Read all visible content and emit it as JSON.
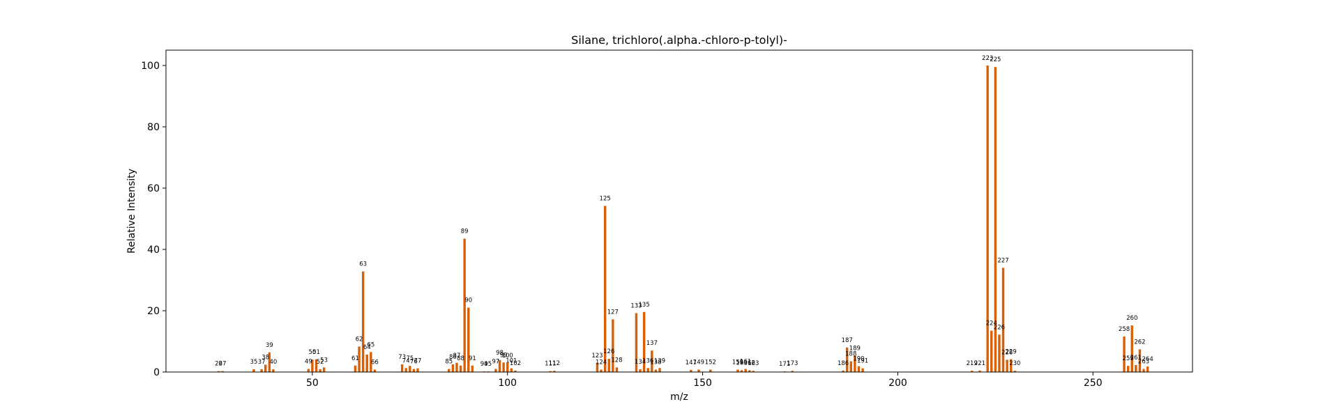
{
  "chart_data": {
    "type": "bar",
    "title": "Silane, trichloro(.alpha.-chloro-p-tolyl)-",
    "xlabel": "m/z",
    "ylabel": "Relative Intensity",
    "xlim": [
      12.5,
      275.5
    ],
    "ylim": [
      0,
      105
    ],
    "xticks": [
      50,
      100,
      150,
      200,
      250
    ],
    "yticks": [
      0,
      20,
      40,
      60,
      80,
      100
    ],
    "grid": false,
    "bar_color": "#d95f02",
    "peaks": [
      {
        "mz": 26,
        "intensity": 0.3
      },
      {
        "mz": 27,
        "intensity": 0.3
      },
      {
        "mz": 35,
        "intensity": 0.9
      },
      {
        "mz": 37,
        "intensity": 0.9
      },
      {
        "mz": 38,
        "intensity": 2.4
      },
      {
        "mz": 39,
        "intensity": 6.4
      },
      {
        "mz": 40,
        "intensity": 0.9
      },
      {
        "mz": 49,
        "intensity": 1.0
      },
      {
        "mz": 50,
        "intensity": 4.1
      },
      {
        "mz": 51,
        "intensity": 4.1
      },
      {
        "mz": 52,
        "intensity": 0.9
      },
      {
        "mz": 53,
        "intensity": 1.5
      },
      {
        "mz": 61,
        "intensity": 2.1
      },
      {
        "mz": 62,
        "intensity": 8.3
      },
      {
        "mz": 63,
        "intensity": 32.8
      },
      {
        "mz": 64,
        "intensity": 5.7
      },
      {
        "mz": 65,
        "intensity": 6.5
      },
      {
        "mz": 66,
        "intensity": 0.8
      },
      {
        "mz": 73,
        "intensity": 2.5
      },
      {
        "mz": 74,
        "intensity": 1.3
      },
      {
        "mz": 75,
        "intensity": 2.0
      },
      {
        "mz": 76,
        "intensity": 1.0
      },
      {
        "mz": 77,
        "intensity": 1.2
      },
      {
        "mz": 85,
        "intensity": 1.0
      },
      {
        "mz": 86,
        "intensity": 2.5
      },
      {
        "mz": 87,
        "intensity": 3.0
      },
      {
        "mz": 88,
        "intensity": 2.1
      },
      {
        "mz": 89,
        "intensity": 43.5
      },
      {
        "mz": 90,
        "intensity": 21.0
      },
      {
        "mz": 91,
        "intensity": 2.1
      },
      {
        "mz": 94,
        "intensity": 0.2
      },
      {
        "mz": 95,
        "intensity": 0.2
      },
      {
        "mz": 97,
        "intensity": 1.0
      },
      {
        "mz": 98,
        "intensity": 3.9
      },
      {
        "mz": 99,
        "intensity": 3.1
      },
      {
        "mz": 100,
        "intensity": 3.0
      },
      {
        "mz": 101,
        "intensity": 1.2
      },
      {
        "mz": 102,
        "intensity": 0.5
      },
      {
        "mz": 111,
        "intensity": 0.3
      },
      {
        "mz": 112,
        "intensity": 0.4
      },
      {
        "mz": 123,
        "intensity": 3.0
      },
      {
        "mz": 124,
        "intensity": 0.8
      },
      {
        "mz": 125,
        "intensity": 54.2
      },
      {
        "mz": 126,
        "intensity": 4.3
      },
      {
        "mz": 127,
        "intensity": 17.2
      },
      {
        "mz": 128,
        "intensity": 1.5
      },
      {
        "mz": 133,
        "intensity": 19.2
      },
      {
        "mz": 134,
        "intensity": 0.9
      },
      {
        "mz": 135,
        "intensity": 19.6
      },
      {
        "mz": 136,
        "intensity": 1.3
      },
      {
        "mz": 137,
        "intensity": 7.0
      },
      {
        "mz": 138,
        "intensity": 0.8
      },
      {
        "mz": 139,
        "intensity": 1.3
      },
      {
        "mz": 147,
        "intensity": 0.7
      },
      {
        "mz": 149,
        "intensity": 0.8
      },
      {
        "mz": 152,
        "intensity": 0.8
      },
      {
        "mz": 159,
        "intensity": 0.8
      },
      {
        "mz": 160,
        "intensity": 0.6
      },
      {
        "mz": 161,
        "intensity": 1.0
      },
      {
        "mz": 162,
        "intensity": 0.6
      },
      {
        "mz": 163,
        "intensity": 0.4
      },
      {
        "mz": 171,
        "intensity": 0.2
      },
      {
        "mz": 173,
        "intensity": 0.4
      },
      {
        "mz": 186,
        "intensity": 0.5
      },
      {
        "mz": 187,
        "intensity": 8.0
      },
      {
        "mz": 188,
        "intensity": 3.5
      },
      {
        "mz": 189,
        "intensity": 5.3
      },
      {
        "mz": 190,
        "intensity": 1.9
      },
      {
        "mz": 191,
        "intensity": 1.2
      },
      {
        "mz": 219,
        "intensity": 0.4
      },
      {
        "mz": 221,
        "intensity": 0.5
      },
      {
        "mz": 223,
        "intensity": 100
      },
      {
        "mz": 224,
        "intensity": 13.5
      },
      {
        "mz": 225,
        "intensity": 99.5
      },
      {
        "mz": 226,
        "intensity": 12.2
      },
      {
        "mz": 227,
        "intensity": 34.0
      },
      {
        "mz": 228,
        "intensity": 4.0
      },
      {
        "mz": 229,
        "intensity": 4.2
      },
      {
        "mz": 230,
        "intensity": 0.4
      },
      {
        "mz": 258,
        "intensity": 11.6
      },
      {
        "mz": 259,
        "intensity": 2.0
      },
      {
        "mz": 260,
        "intensity": 15.2
      },
      {
        "mz": 261,
        "intensity": 2.3
      },
      {
        "mz": 262,
        "intensity": 7.4
      },
      {
        "mz": 263,
        "intensity": 1.0
      },
      {
        "mz": 264,
        "intensity": 1.8
      }
    ]
  }
}
